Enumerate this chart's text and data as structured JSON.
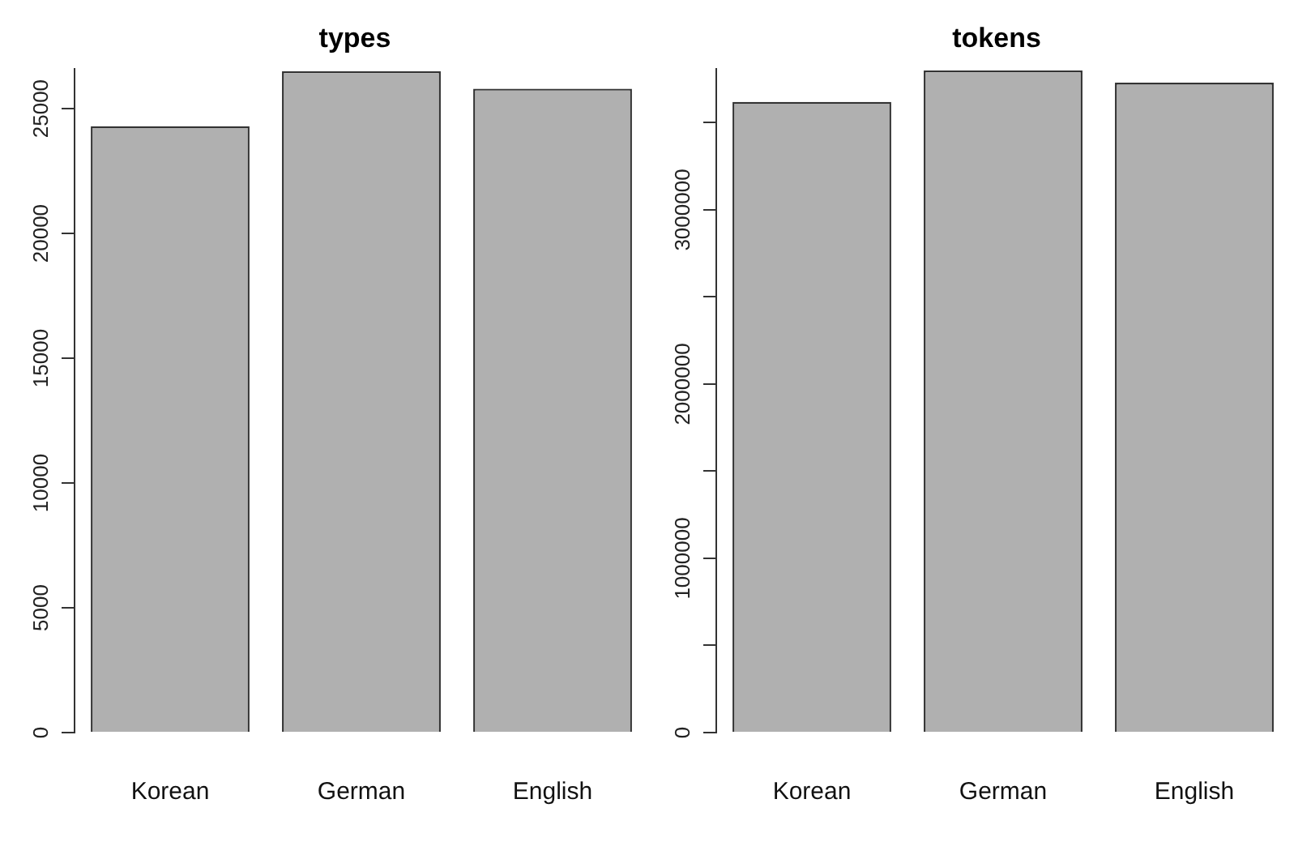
{
  "chart_data": [
    {
      "type": "bar",
      "title": "types",
      "categories": [
        "Korean",
        "German",
        "English"
      ],
      "values": [
        24300,
        26500,
        25800
      ],
      "color": "#b0b0b0",
      "ylim": [
        0,
        26600
      ],
      "yticks": [
        0,
        5000,
        10000,
        15000,
        20000,
        25000
      ],
      "grid": false,
      "legend": false
    },
    {
      "type": "bar",
      "title": "tokens",
      "categories": [
        "Korean",
        "German",
        "English"
      ],
      "values": [
        3620000,
        3800000,
        3730000
      ],
      "color": "#b0b0b0",
      "ylim": [
        0,
        3810000
      ],
      "yticks": [
        0,
        {
          "value": 500000,
          "label": null
        },
        1000000,
        {
          "value": 1500000,
          "label": null
        },
        2000000,
        {
          "value": 2500000,
          "label": null
        },
        3000000,
        {
          "value": 3500000,
          "label": null
        }
      ],
      "grid": false,
      "legend": false
    }
  ]
}
